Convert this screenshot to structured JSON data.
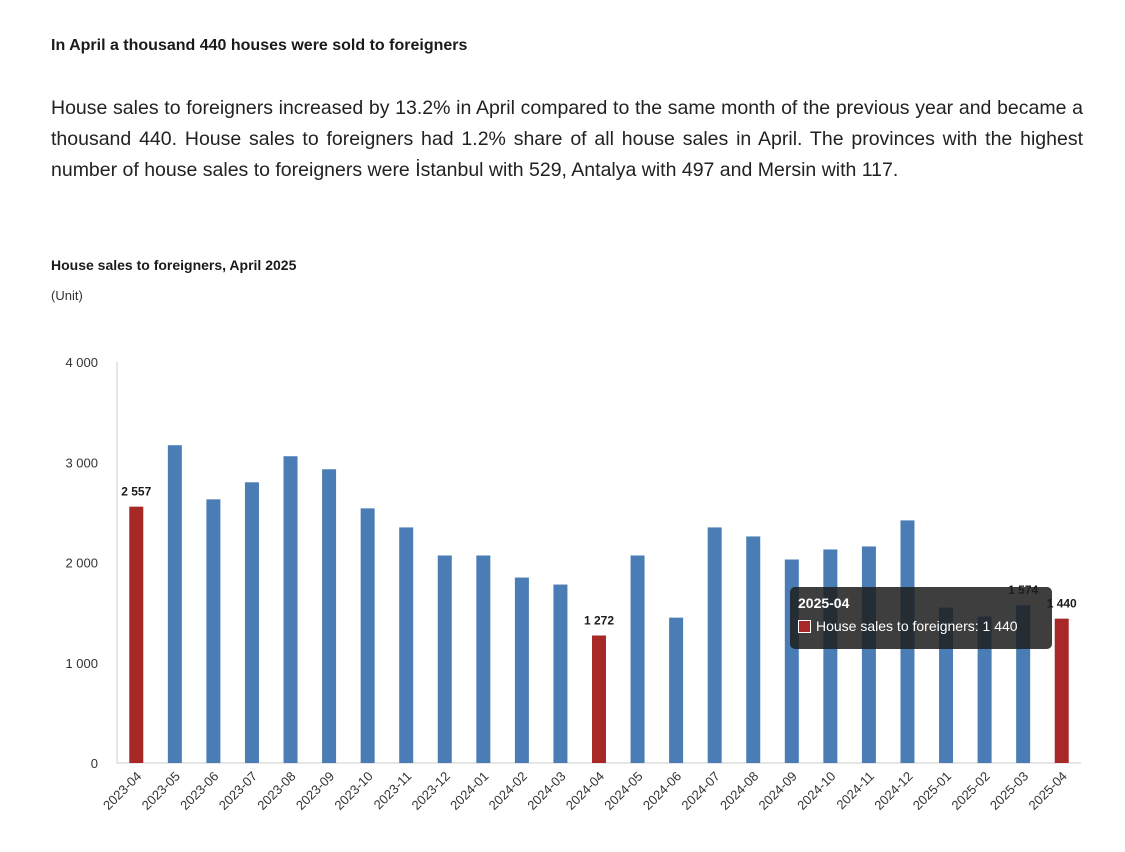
{
  "headline": "In April a thousand 440 houses were sold to foreigners",
  "body": "House sales to foreigners increased by 13.2% in April compared to the same month of the previous year and became a thousand 440. House sales to foreigners had 1.2% share of all house sales in April. The provinces with the highest number of house sales to foreigners were İstanbul with 529, Antalya with 497 and Mersin with 117.",
  "chart_data": {
    "type": "bar",
    "title": "House sales to foreigners, April 2025",
    "ylabel": "(Unit)",
    "xlabel": "",
    "ylim": [
      0,
      4000
    ],
    "yticks": [
      0,
      1000,
      2000,
      3000,
      4000
    ],
    "ytick_labels": [
      "0",
      "1 000",
      "2 000",
      "3 000",
      "4 000"
    ],
    "grid": false,
    "categories": [
      "2023-04",
      "2023-05",
      "2023-06",
      "2023-07",
      "2023-08",
      "2023-09",
      "2023-10",
      "2023-11",
      "2023-12",
      "2024-01",
      "2024-02",
      "2024-03",
      "2024-04",
      "2024-05",
      "2024-06",
      "2024-07",
      "2024-08",
      "2024-09",
      "2024-10",
      "2024-11",
      "2024-12",
      "2025-01",
      "2025-02",
      "2025-03",
      "2025-04"
    ],
    "series": [
      {
        "name": "House sales to foreigners",
        "values": [
          2557,
          3170,
          2630,
          2800,
          3060,
          2930,
          2540,
          2350,
          2070,
          2070,
          1850,
          1780,
          1272,
          2070,
          1450,
          2350,
          2260,
          2030,
          2130,
          2160,
          2420,
          1550,
          1460,
          1574,
          1440
        ]
      }
    ],
    "highlight_indices": [
      0,
      12,
      24
    ],
    "data_labels": [
      {
        "index": 0,
        "text": "2 557"
      },
      {
        "index": 12,
        "text": "1 272"
      },
      {
        "index": 23,
        "text": "1 574"
      },
      {
        "index": 24,
        "text": "1 440"
      }
    ],
    "colors": {
      "bar": "#4a7db5",
      "highlight": "#a82828",
      "axis": "#cccccc",
      "tick_text": "#333333"
    },
    "tooltip": {
      "title": "2025-04",
      "label": "House sales to foreigners: 1 440"
    }
  }
}
